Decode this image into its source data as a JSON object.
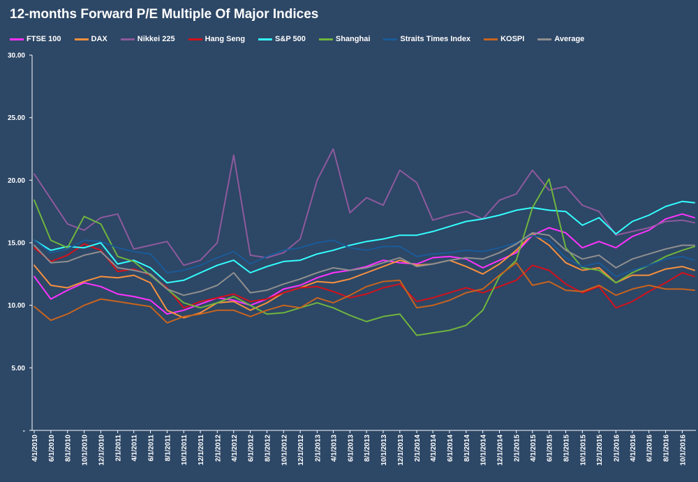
{
  "title": "12-months Forward P/E Multiple Of Major Indices",
  "chart_data": {
    "type": "line",
    "title": "12-months Forward P/E Multiple Of Major Indices",
    "xlabel": "",
    "ylabel": "",
    "x": [
      "4/1/2010",
      "6/1/2010",
      "8/1/2010",
      "10/1/2010",
      "12/1/2010",
      "2/1/2011",
      "4/1/2011",
      "6/1/2011",
      "8/1/2011",
      "10/1/2011",
      "12/1/2011",
      "2/1/2012",
      "4/1/2012",
      "6/1/2012",
      "8/1/2012",
      "10/1/2012",
      "12/1/2012",
      "2/1/2013",
      "4/1/2013",
      "6/1/2013",
      "8/1/2013",
      "10/1/2013",
      "12/1/2013",
      "2/1/2014",
      "4/1/2014",
      "6/1/2014",
      "8/1/2014",
      "10/1/2014",
      "12/1/2014",
      "2/1/2015",
      "4/1/2015",
      "6/1/2015",
      "8/1/2015",
      "10/1/2015",
      "12/1/2015",
      "2/1/2016",
      "4/1/2016",
      "6/1/2016",
      "8/1/2016",
      "10/1/2016",
      "11/15/2016"
    ],
    "x_tick_labels": [
      "4/1/2010",
      "6/1/2010",
      "8/1/2010",
      "10/1/2010",
      "12/1/2010",
      "2/1/2011",
      "4/1/2011",
      "6/1/2011",
      "8/1/2011",
      "10/1/2011",
      "12/1/2011",
      "2/1/2012",
      "4/1/2012",
      "6/1/2012",
      "8/1/2012",
      "10/1/2012",
      "12/1/2012",
      "2/1/2013",
      "4/1/2013",
      "6/1/2013",
      "8/1/2013",
      "10/1/2013",
      "12/1/2013",
      "2/1/2014",
      "4/1/2014",
      "6/1/2014",
      "8/1/2014",
      "10/1/2014",
      "12/1/2014",
      "2/1/2015",
      "4/1/2015",
      "6/1/2015",
      "8/1/2015",
      "10/1/2015",
      "12/1/2015",
      "2/1/2016",
      "4/1/2016",
      "6/1/2016",
      "8/1/2016",
      "10/1/2016"
    ],
    "y_tick_labels": [
      "-",
      "5.00",
      "10.00",
      "15.00",
      "20.00",
      "25.00",
      "30.00"
    ],
    "y_ticks": [
      0,
      5,
      10,
      15,
      20,
      25,
      30
    ],
    "ylim": [
      0,
      30
    ],
    "grid": false,
    "legend_position": "top",
    "series": [
      {
        "name": "FTSE 100",
        "color": "#ff33ff",
        "values": [
          12.3,
          10.5,
          11.2,
          11.8,
          11.5,
          10.9,
          10.7,
          10.4,
          9.3,
          9.6,
          10.1,
          10.6,
          10.4,
          10.0,
          10.5,
          11.3,
          11.6,
          12.2,
          12.6,
          12.8,
          13.1,
          13.6,
          13.4,
          13.3,
          13.8,
          13.9,
          13.7,
          13.0,
          13.6,
          14.2,
          15.6,
          16.2,
          15.8,
          14.6,
          15.1,
          14.6,
          15.5,
          16.0,
          16.9,
          17.3,
          17.0
        ]
      },
      {
        "name": "DAX",
        "color": "#f7913f",
        "values": [
          13.2,
          11.6,
          11.4,
          11.9,
          12.3,
          12.2,
          12.4,
          11.8,
          9.6,
          9.0,
          9.4,
          10.2,
          10.3,
          9.6,
          10.2,
          11.0,
          11.4,
          11.9,
          11.8,
          12.1,
          12.6,
          13.1,
          13.6,
          13.2,
          13.3,
          13.6,
          13.1,
          12.5,
          13.3,
          14.4,
          15.7,
          14.8,
          13.4,
          12.8,
          13.0,
          11.8,
          12.4,
          12.4,
          12.9,
          13.1,
          12.8
        ]
      },
      {
        "name": "Nikkei 225",
        "color": "#8e5a9d",
        "values": [
          20.5,
          18.5,
          16.5,
          16.0,
          17.0,
          17.3,
          14.5,
          14.8,
          15.1,
          13.2,
          13.6,
          15.0,
          22.0,
          14.0,
          13.8,
          14.2,
          15.3,
          20.0,
          22.5,
          17.4,
          18.6,
          18.0,
          20.8,
          19.8,
          16.8,
          17.2,
          17.5,
          16.9,
          18.4,
          18.9,
          20.8,
          19.2,
          19.5,
          18.0,
          17.5,
          15.6,
          15.9,
          16.2,
          16.7,
          16.8,
          16.6
        ]
      },
      {
        "name": "Hang Seng",
        "color": "#d5101b",
        "values": [
          14.6,
          13.5,
          14.0,
          14.9,
          14.4,
          12.7,
          12.9,
          12.4,
          11.4,
          9.8,
          10.3,
          10.6,
          10.9,
          10.3,
          10.5,
          11.0,
          11.4,
          11.5,
          11.1,
          10.6,
          10.9,
          11.4,
          11.7,
          10.3,
          10.6,
          11.0,
          11.4,
          11.0,
          11.5,
          12.0,
          13.2,
          12.8,
          11.7,
          11.0,
          11.5,
          9.8,
          10.3,
          11.1,
          11.8,
          12.6,
          12.3
        ]
      },
      {
        "name": "S&P 500",
        "color": "#33ffff",
        "values": [
          15.2,
          14.4,
          14.7,
          14.6,
          15.0,
          13.3,
          13.6,
          13.0,
          11.8,
          12.0,
          12.6,
          13.2,
          13.6,
          12.6,
          13.1,
          13.5,
          13.6,
          14.1,
          14.4,
          14.8,
          15.1,
          15.3,
          15.6,
          15.6,
          15.9,
          16.3,
          16.7,
          16.9,
          17.2,
          17.6,
          17.8,
          17.6,
          17.5,
          16.4,
          17.0,
          15.7,
          16.7,
          17.2,
          17.9,
          18.3,
          18.2
        ]
      },
      {
        "name": "Shanghai",
        "color": "#6fb63d",
        "values": [
          18.4,
          15.2,
          14.6,
          17.1,
          16.5,
          13.9,
          13.5,
          12.4,
          11.3,
          10.2,
          9.8,
          10.2,
          10.7,
          10.0,
          9.3,
          9.4,
          9.8,
          10.2,
          9.8,
          9.2,
          8.7,
          9.1,
          9.3,
          7.6,
          7.8,
          8.0,
          8.4,
          9.6,
          12.3,
          13.6,
          17.8,
          20.1,
          14.6,
          13.0,
          12.8,
          11.8,
          12.6,
          13.2,
          13.9,
          14.4,
          14.7
        ]
      },
      {
        "name": "Straits Times Index",
        "color": "#1a5b98",
        "values": [
          15.2,
          14.2,
          14.5,
          15.2,
          15.1,
          14.6,
          14.3,
          14.1,
          12.6,
          12.8,
          13.2,
          13.8,
          14.3,
          13.3,
          13.9,
          14.4,
          14.6,
          15.0,
          15.2,
          14.6,
          14.4,
          14.7,
          14.7,
          13.9,
          14.1,
          14.2,
          14.4,
          14.3,
          14.6,
          15.0,
          15.6,
          15.2,
          13.8,
          13.1,
          13.4,
          12.3,
          12.8,
          13.2,
          13.7,
          13.9,
          13.6
        ]
      },
      {
        "name": "KOSPI",
        "color": "#c8641e",
        "values": [
          9.9,
          8.8,
          9.3,
          10.0,
          10.5,
          10.3,
          10.1,
          9.9,
          8.6,
          9.1,
          9.3,
          9.6,
          9.6,
          9.1,
          9.6,
          10.0,
          9.8,
          10.6,
          10.2,
          10.8,
          11.5,
          11.9,
          12.0,
          9.8,
          10.0,
          10.4,
          11.0,
          11.3,
          12.4,
          13.4,
          11.6,
          11.9,
          11.2,
          11.1,
          11.6,
          10.8,
          11.3,
          11.6,
          11.3,
          11.3,
          11.2
        ]
      },
      {
        "name": "Average",
        "color": "#8f8f8f",
        "values": [
          14.8,
          13.4,
          13.5,
          14.0,
          14.3,
          13.0,
          12.8,
          12.5,
          11.3,
          10.8,
          11.1,
          11.6,
          12.6,
          11.0,
          11.2,
          11.7,
          12.1,
          12.6,
          13.0,
          12.8,
          13.0,
          13.4,
          13.8,
          13.1,
          13.3,
          13.6,
          13.8,
          13.7,
          14.2,
          14.9,
          15.8,
          15.6,
          14.4,
          13.7,
          14.0,
          13.0,
          13.7,
          14.1,
          14.5,
          14.8,
          14.8
        ]
      }
    ]
  }
}
